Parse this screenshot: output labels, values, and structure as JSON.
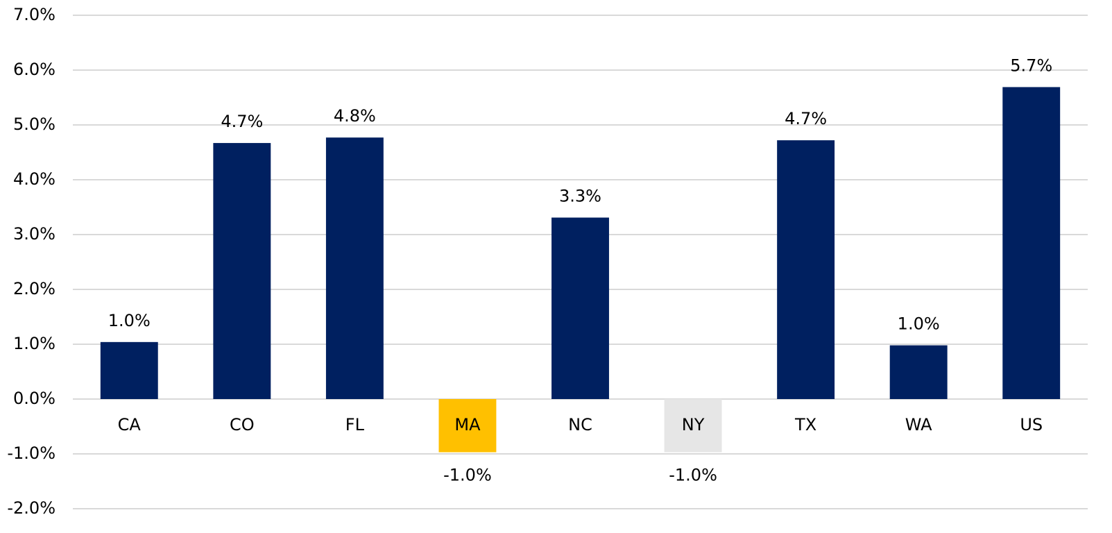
{
  "chart_data": {
    "type": "bar",
    "categories": [
      "CA",
      "CO",
      "FL",
      "MA",
      "NC",
      "NY",
      "TX",
      "WA",
      "US"
    ],
    "values": [
      1.04,
      4.67,
      4.77,
      -0.97,
      3.31,
      -0.97,
      4.72,
      0.98,
      5.69
    ],
    "value_labels": [
      "1.0%",
      "4.7%",
      "4.8%",
      "-1.0%",
      "3.3%",
      "-1.0%",
      "4.7%",
      "1.0%",
      "5.7%"
    ],
    "colors": [
      "#002060",
      "#002060",
      "#002060",
      "#ffc000",
      "#002060",
      "#e6e6e6",
      "#002060",
      "#002060",
      "#002060"
    ],
    "ylim": [
      -2,
      7
    ],
    "yticks": [
      {
        "value": -2,
        "label": "-2.0%"
      },
      {
        "value": -1,
        "label": "-1.0%"
      },
      {
        "value": 0,
        "label": "0.0%"
      },
      {
        "value": 1,
        "label": "1.0%"
      },
      {
        "value": 2,
        "label": "2.0%"
      },
      {
        "value": 3,
        "label": "3.0%"
      },
      {
        "value": 4,
        "label": "4.0%"
      },
      {
        "value": 5,
        "label": "5.0%"
      },
      {
        "value": 6,
        "label": "6.0%"
      },
      {
        "value": 7,
        "label": "7.0%"
      }
    ],
    "grid": true
  }
}
